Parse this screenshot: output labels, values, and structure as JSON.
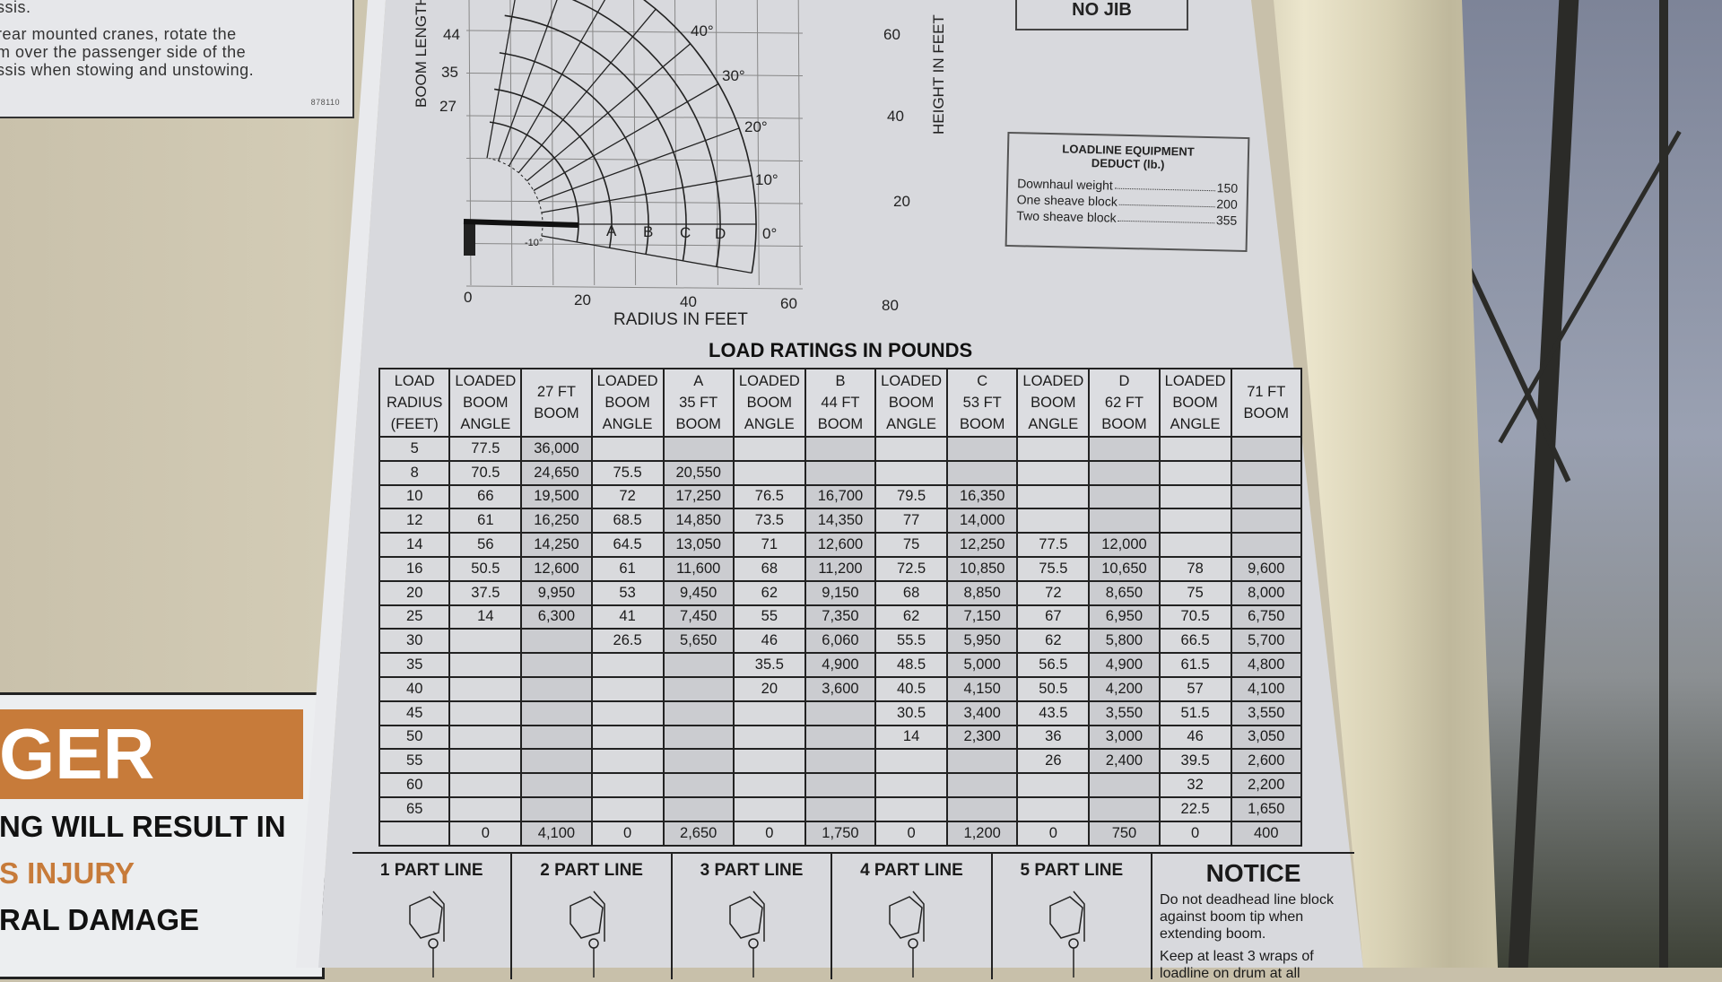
{
  "sticker": {
    "lines": [
      "ssis.",
      "rear mounted cranes, rotate the",
      "m over the passenger side of the",
      "ssis when stowing and unstowing."
    ],
    "code": "878110"
  },
  "danger_sign": {
    "header": "GER",
    "lines": [
      "NG WILL RESULT IN",
      "S INJURY",
      "RAL DAMAGE"
    ],
    "colors": {
      "band": "#c77b3a"
    }
  },
  "diagram": {
    "y_left_label": "BOOM LENGTH",
    "y_right_label": "HEIGHT IN FEET",
    "x_label": "RADIUS IN FEET",
    "x_ticks": [
      "0",
      "20",
      "40",
      "60",
      "80"
    ],
    "height_ticks": [
      "20",
      "40",
      "60"
    ],
    "boom_lengths": [
      "27",
      "35",
      "44"
    ],
    "angles": [
      "40°",
      "30°",
      "20°",
      "10°",
      "0°",
      "-10°"
    ],
    "sections": [
      "A",
      "B",
      "C",
      "D"
    ]
  },
  "no_jib": "NO JIB",
  "loadline": {
    "title": "LOADLINE EQUIPMENT\nDEDUCT (lb.)",
    "items": [
      {
        "label": "Downhaul weight",
        "value": "150"
      },
      {
        "label": "One sheave block",
        "value": "200"
      },
      {
        "label": "Two sheave block",
        "value": "355"
      }
    ]
  },
  "table": {
    "title": "LOAD RATINGS IN POUNDS",
    "headers": [
      "LOAD\nRADIUS\n(FEET)",
      "LOADED\nBOOM\nANGLE",
      "27 FT\nBOOM",
      "LOADED\nBOOM\nANGLE",
      "A\n35 FT\nBOOM",
      "LOADED\nBOOM\nANGLE",
      "B\n44 FT\nBOOM",
      "LOADED\nBOOM\nANGLE",
      "C\n53 FT\nBOOM",
      "LOADED\nBOOM\nANGLE",
      "D\n62 FT\nBOOM",
      "LOADED\nBOOM\nANGLE",
      "71 FT\nBOOM"
    ],
    "rows": [
      [
        "5",
        "77.5",
        "36,000",
        "",
        "",
        "",
        "",
        "",
        "",
        "",
        "",
        "",
        ""
      ],
      [
        "8",
        "70.5",
        "24,650",
        "75.5",
        "20,550",
        "",
        "",
        "",
        "",
        "",
        "",
        "",
        ""
      ],
      [
        "10",
        "66",
        "19,500",
        "72",
        "17,250",
        "76.5",
        "16,700",
        "79.5",
        "16,350",
        "",
        "",
        "",
        ""
      ],
      [
        "12",
        "61",
        "16,250",
        "68.5",
        "14,850",
        "73.5",
        "14,350",
        "77",
        "14,000",
        "",
        "",
        "",
        ""
      ],
      [
        "14",
        "56",
        "14,250",
        "64.5",
        "13,050",
        "71",
        "12,600",
        "75",
        "12,250",
        "77.5",
        "12,000",
        "",
        ""
      ],
      [
        "16",
        "50.5",
        "12,600",
        "61",
        "11,600",
        "68",
        "11,200",
        "72.5",
        "10,850",
        "75.5",
        "10,650",
        "78",
        "9,600"
      ],
      [
        "20",
        "37.5",
        "9,950",
        "53",
        "9,450",
        "62",
        "9,150",
        "68",
        "8,850",
        "72",
        "8,650",
        "75",
        "8,000"
      ],
      [
        "25",
        "14",
        "6,300",
        "41",
        "7,450",
        "55",
        "7,350",
        "62",
        "7,150",
        "67",
        "6,950",
        "70.5",
        "6,750"
      ],
      [
        "30",
        "",
        "",
        "26.5",
        "5,650",
        "46",
        "6,060",
        "55.5",
        "5,950",
        "62",
        "5,800",
        "66.5",
        "5,700"
      ],
      [
        "35",
        "",
        "",
        "",
        "",
        "35.5",
        "4,900",
        "48.5",
        "5,000",
        "56.5",
        "4,900",
        "61.5",
        "4,800"
      ],
      [
        "40",
        "",
        "",
        "",
        "",
        "20",
        "3,600",
        "40.5",
        "4,150",
        "50.5",
        "4,200",
        "57",
        "4,100"
      ],
      [
        "45",
        "",
        "",
        "",
        "",
        "",
        "",
        "30.5",
        "3,400",
        "43.5",
        "3,550",
        "51.5",
        "3,550"
      ],
      [
        "50",
        "",
        "",
        "",
        "",
        "",
        "",
        "14",
        "2,300",
        "36",
        "3,000",
        "46",
        "3,050"
      ],
      [
        "55",
        "",
        "",
        "",
        "",
        "",
        "",
        "",
        "",
        "26",
        "2,400",
        "39.5",
        "2,600"
      ],
      [
        "60",
        "",
        "",
        "",
        "",
        "",
        "",
        "",
        "",
        "",
        "",
        "32",
        "2,200"
      ],
      [
        "65",
        "",
        "",
        "",
        "",
        "",
        "",
        "",
        "",
        "",
        "",
        "22.5",
        "1,650"
      ],
      [
        "",
        "0",
        "4,100",
        "0",
        "2,650",
        "0",
        "1,750",
        "0",
        "1,200",
        "0",
        "750",
        "0",
        "400"
      ]
    ]
  },
  "part_lines": [
    "1 PART LINE",
    "2 PART LINE",
    "3 PART LINE",
    "4 PART LINE",
    "5 PART LINE"
  ],
  "notice": {
    "title": "NOTICE",
    "items": [
      "Do not deadhead line block against boom tip when extending boom.",
      "Keep at least 3 wraps of loadline on drum at all"
    ]
  }
}
